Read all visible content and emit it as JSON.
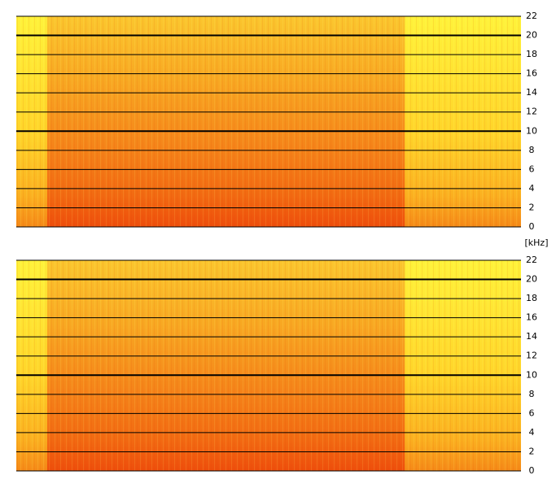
{
  "chart_data": [
    {
      "type": "spectrogram",
      "ylim": [
        0,
        22
      ],
      "yticks": [
        0,
        2,
        4,
        6,
        8,
        10,
        12,
        14,
        16,
        18,
        20,
        22
      ],
      "major_yticks": [
        10,
        20
      ],
      "grid": true,
      "ylabel": "[kHz]"
    },
    {
      "type": "spectrogram",
      "ylim": [
        0,
        22
      ],
      "yticks": [
        0,
        2,
        4,
        6,
        8,
        10,
        12,
        14,
        16,
        18,
        20,
        22
      ],
      "major_yticks": [
        10,
        20
      ],
      "grid": true
    }
  ]
}
